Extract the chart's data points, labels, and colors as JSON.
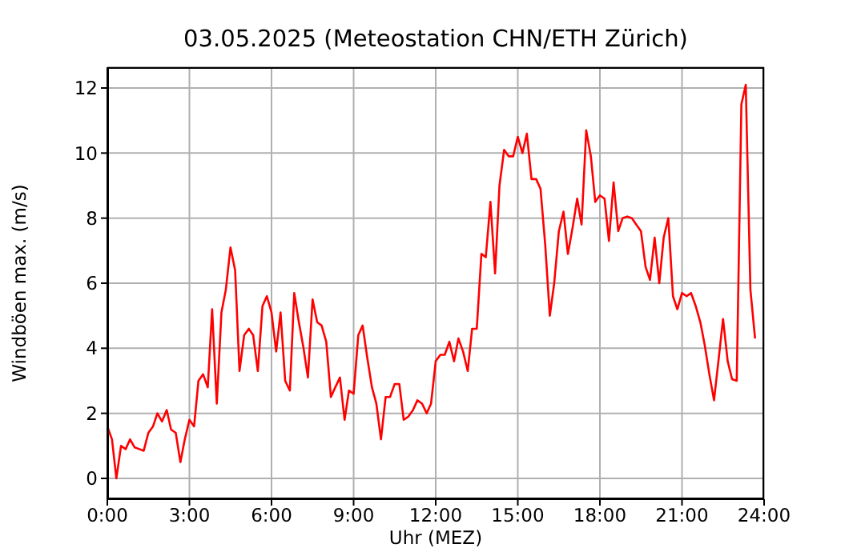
{
  "chart_data": {
    "type": "line",
    "title": "03.05.2025  (Meteostation CHN/ETH Zürich)",
    "xlabel": "Uhr (MEZ)",
    "ylabel": "Windböen max. (m/s)",
    "x": [
      0,
      0.17,
      0.33,
      0.5,
      0.67,
      0.83,
      1,
      1.17,
      1.33,
      1.5,
      1.67,
      1.83,
      2,
      2.17,
      2.33,
      2.5,
      2.67,
      2.83,
      3,
      3.17,
      3.33,
      3.5,
      3.67,
      3.83,
      4,
      4.17,
      4.33,
      4.5,
      4.67,
      4.83,
      5,
      5.17,
      5.33,
      5.5,
      5.67,
      5.83,
      6,
      6.17,
      6.33,
      6.5,
      6.67,
      6.83,
      7,
      7.17,
      7.33,
      7.5,
      7.67,
      7.83,
      8,
      8.17,
      8.33,
      8.5,
      8.67,
      8.83,
      9,
      9.17,
      9.33,
      9.5,
      9.67,
      9.83,
      10,
      10.17,
      10.33,
      10.5,
      10.67,
      10.83,
      11,
      11.17,
      11.33,
      11.5,
      11.67,
      11.83,
      12,
      12.17,
      12.33,
      12.5,
      12.67,
      12.83,
      13,
      13.17,
      13.33,
      13.5,
      13.67,
      13.83,
      14,
      14.17,
      14.33,
      14.5,
      14.67,
      14.83,
      15,
      15.17,
      15.33,
      15.5,
      15.67,
      15.83,
      16,
      16.17,
      16.33,
      16.5,
      16.67,
      16.83,
      17,
      17.17,
      17.33,
      17.5,
      17.67,
      17.83,
      18,
      18.17,
      18.33,
      18.5,
      18.67,
      18.83,
      19,
      19.17,
      19.33,
      19.5,
      19.67,
      19.83,
      20,
      20.17,
      20.33,
      20.5,
      20.67,
      20.83,
      21,
      21.17,
      21.33,
      21.5,
      21.67,
      21.83,
      22,
      22.17,
      22.33,
      22.5,
      22.67,
      22.83,
      23,
      23.17,
      23.33,
      23.5,
      23.67
    ],
    "series": [
      {
        "color": "#ff0000",
        "values": [
          1.6,
          1.2,
          0.0,
          1.0,
          0.9,
          1.2,
          0.95,
          0.9,
          0.85,
          1.4,
          1.6,
          2.0,
          1.75,
          2.1,
          1.5,
          1.4,
          0.5,
          1.2,
          1.8,
          1.6,
          3.0,
          3.2,
          2.8,
          5.2,
          2.3,
          5.1,
          5.8,
          7.1,
          6.4,
          3.3,
          4.4,
          4.6,
          4.4,
          3.3,
          5.3,
          5.6,
          5.1,
          3.9,
          5.1,
          3.0,
          2.7,
          5.7,
          4.8,
          4.0,
          3.1,
          5.5,
          4.8,
          4.7,
          4.2,
          2.5,
          2.8,
          3.1,
          1.8,
          2.7,
          2.6,
          4.4,
          4.7,
          3.7,
          2.8,
          2.3,
          1.2,
          2.5,
          2.5,
          2.9,
          2.9,
          1.8,
          1.9,
          2.1,
          2.4,
          2.3,
          2.0,
          2.3,
          3.6,
          3.8,
          3.8,
          4.2,
          3.6,
          4.3,
          3.9,
          3.3,
          4.6,
          4.6,
          6.9,
          6.8,
          8.5,
          6.3,
          9.0,
          10.1,
          9.9,
          9.9,
          10.5,
          10.0,
          10.6,
          9.2,
          9.2,
          8.9,
          7.2,
          5.0,
          6.0,
          7.6,
          8.2,
          6.9,
          7.7,
          8.6,
          7.8,
          10.7,
          9.9,
          8.5,
          8.7,
          8.6,
          7.3,
          9.1,
          7.6,
          8.0,
          8.05,
          8.0,
          7.8,
          7.6,
          6.5,
          6.1,
          7.4,
          6.0,
          7.4,
          8.0,
          5.6,
          5.2,
          5.7,
          5.6,
          5.7,
          5.3,
          4.8,
          4.1,
          3.2,
          2.4,
          3.6,
          4.9,
          3.6,
          3.05,
          3.0,
          11.5,
          12.1,
          5.8,
          4.3
        ]
      }
    ],
    "xlim": [
      0,
      24
    ],
    "xticks": [
      {
        "value": 0,
        "label": "0:00"
      },
      {
        "value": 3,
        "label": "3:00"
      },
      {
        "value": 6,
        "label": "6:00"
      },
      {
        "value": 9,
        "label": "9:00"
      },
      {
        "value": 12,
        "label": "12:00"
      },
      {
        "value": 15,
        "label": "15:00"
      },
      {
        "value": 18,
        "label": "18:00"
      },
      {
        "value": 21,
        "label": "21:00"
      },
      {
        "value": 24,
        "label": "24:00"
      }
    ],
    "ylim": [
      -0.64,
      12.64
    ],
    "yticks": [
      0,
      2,
      4,
      6,
      8,
      10,
      12
    ],
    "grid": true,
    "marker": "none",
    "line_style": "solid"
  }
}
